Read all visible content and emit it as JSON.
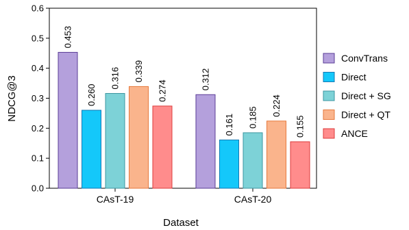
{
  "chart_data": {
    "type": "bar",
    "title": "",
    "xlabel": "Dataset",
    "ylabel": "NDCG@3",
    "ylim": [
      0,
      0.6
    ],
    "yticks": [
      "0.0",
      "0.1",
      "0.2",
      "0.3",
      "0.4",
      "0.5",
      "0.6"
    ],
    "categories": [
      "CAsT-19",
      "CAsT-20"
    ],
    "legend_position": "right",
    "series": [
      {
        "name": "ConvTrans",
        "color": "#b4a0dc",
        "stroke": "#5a3c96",
        "values": [
          0.453,
          0.312
        ],
        "labels": [
          "0.453",
          "0.312"
        ]
      },
      {
        "name": "Direct",
        "color": "#14c8fa",
        "stroke": "#1478b4",
        "values": [
          0.26,
          0.161
        ],
        "labels": [
          "0.260",
          "0.161"
        ]
      },
      {
        "name": "Direct + SG",
        "color": "#7dd2d7",
        "stroke": "#3c96a0",
        "values": [
          0.316,
          0.185
        ],
        "labels": [
          "0.316",
          "0.185"
        ]
      },
      {
        "name": "Direct + QT",
        "color": "#fab48c",
        "stroke": "#e6783c",
        "values": [
          0.339,
          0.224
        ],
        "labels": [
          "0.339",
          "0.224"
        ]
      },
      {
        "name": "ANCE",
        "color": "#ff8c8c",
        "stroke": "#dc3c3c",
        "values": [
          0.274,
          0.155
        ],
        "labels": [
          "0.274",
          "0.155"
        ]
      }
    ]
  }
}
